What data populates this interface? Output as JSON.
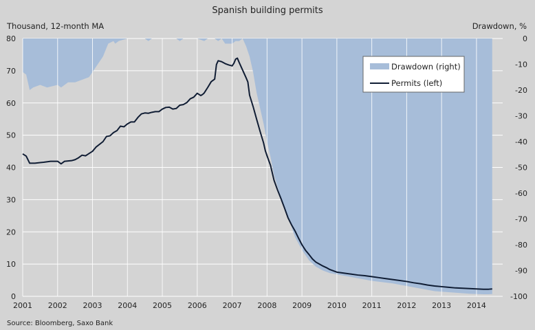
{
  "chart_data": {
    "type": "area",
    "title": "Spanish  building  permits",
    "left_axis_label": "Thousand, 12-month MA",
    "right_axis_label": "Drawdown, %",
    "source": "Source: Bloomberg, Saxo Bank",
    "x_range": [
      2001,
      2014.75
    ],
    "left_ylim": [
      0,
      80
    ],
    "right_ylim": [
      -100,
      0
    ],
    "x_ticks": [
      2001,
      2002,
      2003,
      2004,
      2005,
      2006,
      2007,
      2008,
      2009,
      2010,
      2011,
      2012,
      2013,
      2014
    ],
    "left_ticks": [
      0,
      10,
      20,
      30,
      40,
      50,
      60,
      70,
      80
    ],
    "right_ticks": [
      0,
      -10,
      -20,
      -30,
      -40,
      -50,
      -60,
      -70,
      -80,
      -90,
      -100
    ],
    "grid": true,
    "legend_position": "top-right",
    "colors": {
      "drawdown": "#a7bdd9",
      "permits": "#0f1c33",
      "background": "#d4d4d4",
      "grid": "#ffffff"
    },
    "series": [
      {
        "name": "Drawdown (right)",
        "axis": "right",
        "kind": "area",
        "x": [
          2001.0,
          2001.1,
          2001.2,
          2001.3,
          2001.5,
          2001.7,
          2002.0,
          2002.1,
          2002.3,
          2002.5,
          2002.7,
          2002.9,
          2003.1,
          2003.3,
          2003.45,
          2003.6,
          2003.65,
          2003.75,
          2004.0,
          2004.5,
          2004.6,
          2004.7,
          2005.0,
          2005.4,
          2005.5,
          2005.6,
          2006.0,
          2006.2,
          2006.3,
          2006.5,
          2006.6,
          2006.7,
          2006.8,
          2007.0,
          2007.1,
          2007.2,
          2007.3,
          2007.4,
          2007.5,
          2007.6,
          2007.7,
          2007.8,
          2007.9,
          2008.0,
          2008.1,
          2008.2,
          2008.4,
          2008.6,
          2008.8,
          2009.0,
          2009.2,
          2009.4,
          2009.6,
          2009.8,
          2010.0,
          2010.2,
          2010.4,
          2010.6,
          2010.8,
          2011.0,
          2011.3,
          2011.6,
          2011.8,
          2012.0,
          2012.2,
          2012.4,
          2012.6,
          2012.8,
          2013.0,
          2013.2,
          2013.4,
          2013.6,
          2013.8,
          2014.0,
          2014.2,
          2014.35,
          2014.45
        ],
        "values": [
          -13,
          -14,
          -20,
          -19,
          -18,
          -19,
          -18,
          -19,
          -17,
          -17,
          -16,
          -15,
          -11,
          -7,
          -2,
          -1,
          -2,
          -1,
          0,
          0,
          -1,
          0,
          0,
          0,
          -1,
          0,
          0,
          -1,
          0,
          0,
          -1,
          0,
          -2,
          -2,
          -1,
          -1,
          0,
          -3,
          -7,
          -13,
          -21,
          -27,
          -33,
          -40,
          -46,
          -53,
          -62,
          -69,
          -77,
          -82,
          -86,
          -88.5,
          -90,
          -91,
          -91.5,
          -92,
          -92.5,
          -93,
          -93.5,
          -94,
          -94.5,
          -95,
          -95.5,
          -96,
          -96.5,
          -97,
          -97.5,
          -98,
          -98.2,
          -98.4,
          -98.6,
          -98.8,
          -99,
          -99.1,
          -99.2,
          -99.2,
          -99.1
        ]
      },
      {
        "name": "Permits (left)",
        "axis": "left",
        "kind": "line",
        "x": [
          2001.0,
          2001.1,
          2001.2,
          2001.35,
          2001.5,
          2001.6,
          2001.8,
          2002.0,
          2002.1,
          2002.2,
          2002.4,
          2002.5,
          2002.6,
          2002.7,
          2002.8,
          2002.9,
          2003.0,
          2003.1,
          2003.3,
          2003.4,
          2003.5,
          2003.6,
          2003.7,
          2003.8,
          2003.9,
          2004.0,
          2004.1,
          2004.2,
          2004.3,
          2004.4,
          2004.5,
          2004.6,
          2004.7,
          2004.8,
          2004.9,
          2005.0,
          2005.1,
          2005.2,
          2005.3,
          2005.4,
          2005.5,
          2005.6,
          2005.7,
          2005.8,
          2005.9,
          2006.0,
          2006.1,
          2006.15,
          2006.2,
          2006.3,
          2006.4,
          2006.5,
          2006.55,
          2006.6,
          2006.7,
          2006.8,
          2006.9,
          2007.0,
          2007.05,
          2007.1,
          2007.15,
          2007.2,
          2007.3,
          2007.4,
          2007.45,
          2007.5,
          2007.6,
          2007.7,
          2007.8,
          2007.9,
          2007.95,
          2008.0,
          2008.1,
          2008.2,
          2008.3,
          2008.4,
          2008.5,
          2008.6,
          2008.7,
          2008.8,
          2008.9,
          2009.0,
          2009.1,
          2009.2,
          2009.3,
          2009.4,
          2009.5,
          2009.6,
          2009.7,
          2009.8,
          2009.9,
          2010.0,
          2010.2,
          2010.4,
          2010.6,
          2010.8,
          2011.0,
          2011.2,
          2011.4,
          2011.6,
          2011.8,
          2012.0,
          2012.2,
          2012.4,
          2012.6,
          2012.8,
          2013.0,
          2013.2,
          2013.4,
          2013.6,
          2013.8,
          2014.0,
          2014.2,
          2014.35,
          2014.45
        ],
        "values": [
          44.2,
          43.5,
          41.3,
          41.3,
          41.5,
          41.6,
          41.9,
          41.9,
          41.1,
          41.9,
          42.1,
          42.4,
          43.0,
          43.8,
          43.6,
          44.3,
          45.0,
          46.3,
          48.0,
          49.6,
          49.8,
          50.8,
          51.4,
          52.8,
          52.6,
          53.5,
          54.1,
          54.1,
          55.5,
          56.6,
          56.9,
          56.8,
          57.1,
          57.3,
          57.3,
          58.1,
          58.6,
          58.7,
          58.1,
          58.3,
          59.3,
          59.5,
          60.1,
          61.3,
          61.8,
          63.0,
          62.3,
          62.6,
          63.1,
          64.8,
          66.6,
          67.4,
          71.9,
          73.1,
          72.8,
          72.2,
          71.8,
          71.5,
          72.3,
          73.6,
          73.9,
          72.6,
          70.2,
          67.8,
          66.5,
          62.4,
          58.9,
          55.0,
          51.2,
          47.6,
          45.2,
          43.6,
          40.6,
          36.0,
          33.0,
          30.3,
          27.4,
          24.4,
          22.2,
          20.3,
          18.1,
          16.0,
          14.3,
          13.0,
          11.6,
          10.6,
          10.0,
          9.4,
          8.9,
          8.3,
          7.9,
          7.5,
          7.2,
          6.9,
          6.6,
          6.4,
          6.1,
          5.8,
          5.5,
          5.2,
          4.9,
          4.6,
          4.2,
          3.9,
          3.5,
          3.2,
          3.0,
          2.8,
          2.6,
          2.5,
          2.4,
          2.3,
          2.2,
          2.2,
          2.3
        ]
      }
    ],
    "legend": [
      {
        "label": "Drawdown (right)",
        "series": "Drawdown (right)"
      },
      {
        "label": "Permits (left)",
        "series": "Permits (left)"
      }
    ]
  }
}
